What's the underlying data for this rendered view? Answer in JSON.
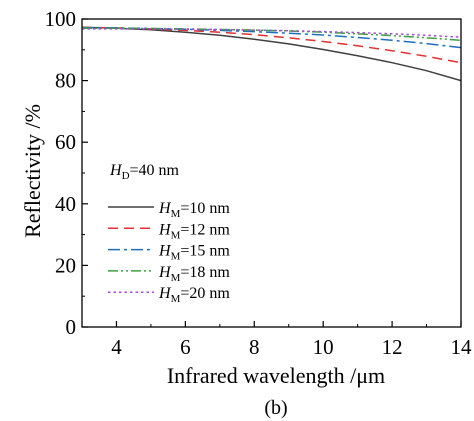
{
  "chart_data": {
    "type": "line",
    "xlabel": "Infrared wavelength /μm",
    "ylabel": "Reflectivity /%",
    "xlim": [
      3,
      14
    ],
    "ylim": [
      0,
      100
    ],
    "x_ticks": [
      4,
      6,
      8,
      10,
      12,
      14
    ],
    "y_ticks": [
      0,
      20,
      40,
      60,
      80,
      100
    ],
    "panel_label": "(b)",
    "legend_placement": "left-center",
    "annotation": {
      "symbol": "H",
      "subscript": "D",
      "rest": "=40 nm"
    },
    "x": [
      3,
      4,
      5,
      6,
      7,
      8,
      9,
      10,
      11,
      12,
      13,
      14
    ],
    "series": [
      {
        "name": "HM=10 nm",
        "label_symbol": "H",
        "label_subscript": "M",
        "label_rest": "=10 nm",
        "color": "#404040",
        "dash": "solid",
        "values": [
          97.3,
          97.0,
          96.5,
          95.7,
          94.7,
          93.4,
          91.9,
          90.1,
          88.1,
          85.8,
          83.2,
          80.0
        ]
      },
      {
        "name": "HM=12 nm",
        "label_symbol": "H",
        "label_subscript": "M",
        "label_rest": "=12 nm",
        "color": "#e03030",
        "dash": "dash",
        "values": [
          97.3,
          97.1,
          96.8,
          96.3,
          95.7,
          94.9,
          93.9,
          92.7,
          91.3,
          89.7,
          87.9,
          85.8
        ]
      },
      {
        "name": "HM=15 nm",
        "label_symbol": "H",
        "label_subscript": "M",
        "label_rest": "=15 nm",
        "color": "#1f6fc0",
        "dash": "dashdot",
        "values": [
          97.2,
          97.1,
          96.9,
          96.7,
          96.3,
          95.9,
          95.4,
          94.8,
          94.0,
          93.1,
          92.0,
          90.7
        ]
      },
      {
        "name": "HM=18 nm",
        "label_symbol": "H",
        "label_subscript": "M",
        "label_rest": "=18 nm",
        "color": "#3aa040",
        "dash": "dashdotdot",
        "values": [
          97.0,
          97.0,
          96.9,
          96.8,
          96.6,
          96.4,
          96.1,
          95.7,
          95.2,
          94.6,
          93.9,
          93.1
        ]
      },
      {
        "name": "HM=20 nm",
        "label_symbol": "H",
        "label_subscript": "M",
        "label_rest": "=20 nm",
        "color": "#a050d0",
        "dash": "dot",
        "values": [
          96.8,
          96.8,
          96.8,
          96.7,
          96.6,
          96.4,
          96.2,
          95.9,
          95.6,
          95.2,
          94.7,
          94.1
        ]
      }
    ]
  }
}
